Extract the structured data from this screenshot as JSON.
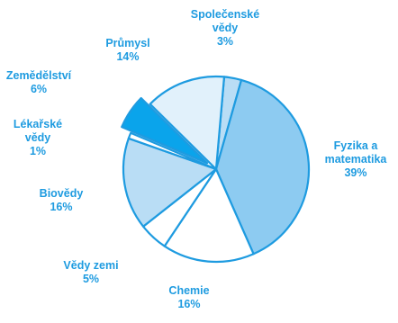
{
  "chart_data": {
    "type": "pie",
    "title": "",
    "colors": {
      "stroke": "#1e9be0",
      "light": "#e1f1fb",
      "medium": "#b9ddf5",
      "deep": "#8dcbf1",
      "dark": "#0aa4eb",
      "white": "#ffffff",
      "label": "#1e9be0"
    },
    "slices": [
      {
        "name_lines": [
          "Společenské",
          "vědy"
        ],
        "value_label": "3%",
        "value": 3,
        "fill": "#b9ddf5"
      },
      {
        "name_lines": [
          "Fyzika a",
          "matematika"
        ],
        "value_label": "39%",
        "value": 39,
        "fill": "#8dcbf1"
      },
      {
        "name_lines": [
          "Chemie"
        ],
        "value_label": "16%",
        "value": 16,
        "fill": "#ffffff"
      },
      {
        "name_lines": [
          "Vědy zemi"
        ],
        "value_label": "5%",
        "value": 5,
        "fill": "#ffffff"
      },
      {
        "name_lines": [
          "Biovědy"
        ],
        "value_label": "16%",
        "value": 16,
        "fill": "#b9ddf5"
      },
      {
        "name_lines": [
          "Lékařské",
          "vědy"
        ],
        "value_label": "1%",
        "value": 1,
        "fill": "#ffffff"
      },
      {
        "name_lines": [
          "Zemědělství"
        ],
        "value_label": "6%",
        "value": 6,
        "fill": "#0aa4eb"
      },
      {
        "name_lines": [
          "Průmysl"
        ],
        "value_label": "14%",
        "value": 14,
        "fill": "#e1f1fb"
      }
    ]
  }
}
